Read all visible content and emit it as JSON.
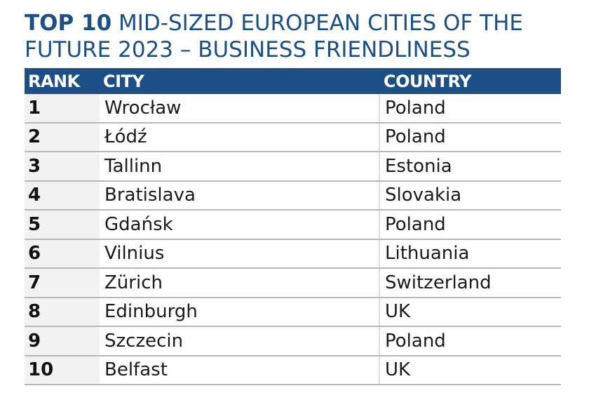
{
  "title": {
    "bold": "TOP 10",
    "rest": " MID-SIZED EUROPEAN CITIES OF THE FUTURE 2023 – BUSINESS FRIENDLINESS"
  },
  "table": {
    "headers": {
      "rank": "RANK",
      "city": "CITY",
      "country": "COUNTRY"
    },
    "rows": [
      {
        "rank": "1",
        "city": "Wrocław",
        "country": "Poland"
      },
      {
        "rank": "2",
        "city": "Łódź",
        "country": "Poland"
      },
      {
        "rank": "3",
        "city": "Tallinn",
        "country": "Estonia"
      },
      {
        "rank": "4",
        "city": "Bratislava",
        "country": "Slovakia"
      },
      {
        "rank": "5",
        "city": "Gdańsk",
        "country": "Poland"
      },
      {
        "rank": "6",
        "city": "Vilnius",
        "country": "Lithuania"
      },
      {
        "rank": "7",
        "city": "Zürich",
        "country": "Switzerland"
      },
      {
        "rank": "8",
        "city": "Edinburgh",
        "country": "UK"
      },
      {
        "rank": "9",
        "city": "Szczecin",
        "country": "Poland"
      },
      {
        "rank": "10",
        "city": "Belfast",
        "country": "UK"
      }
    ]
  },
  "colors": {
    "title": "#1b4f86",
    "header_bg": "#1b4f86",
    "header_text": "#ffffff",
    "rank_bg": "#f2f2f2",
    "row_border": "#b9b9b9"
  }
}
